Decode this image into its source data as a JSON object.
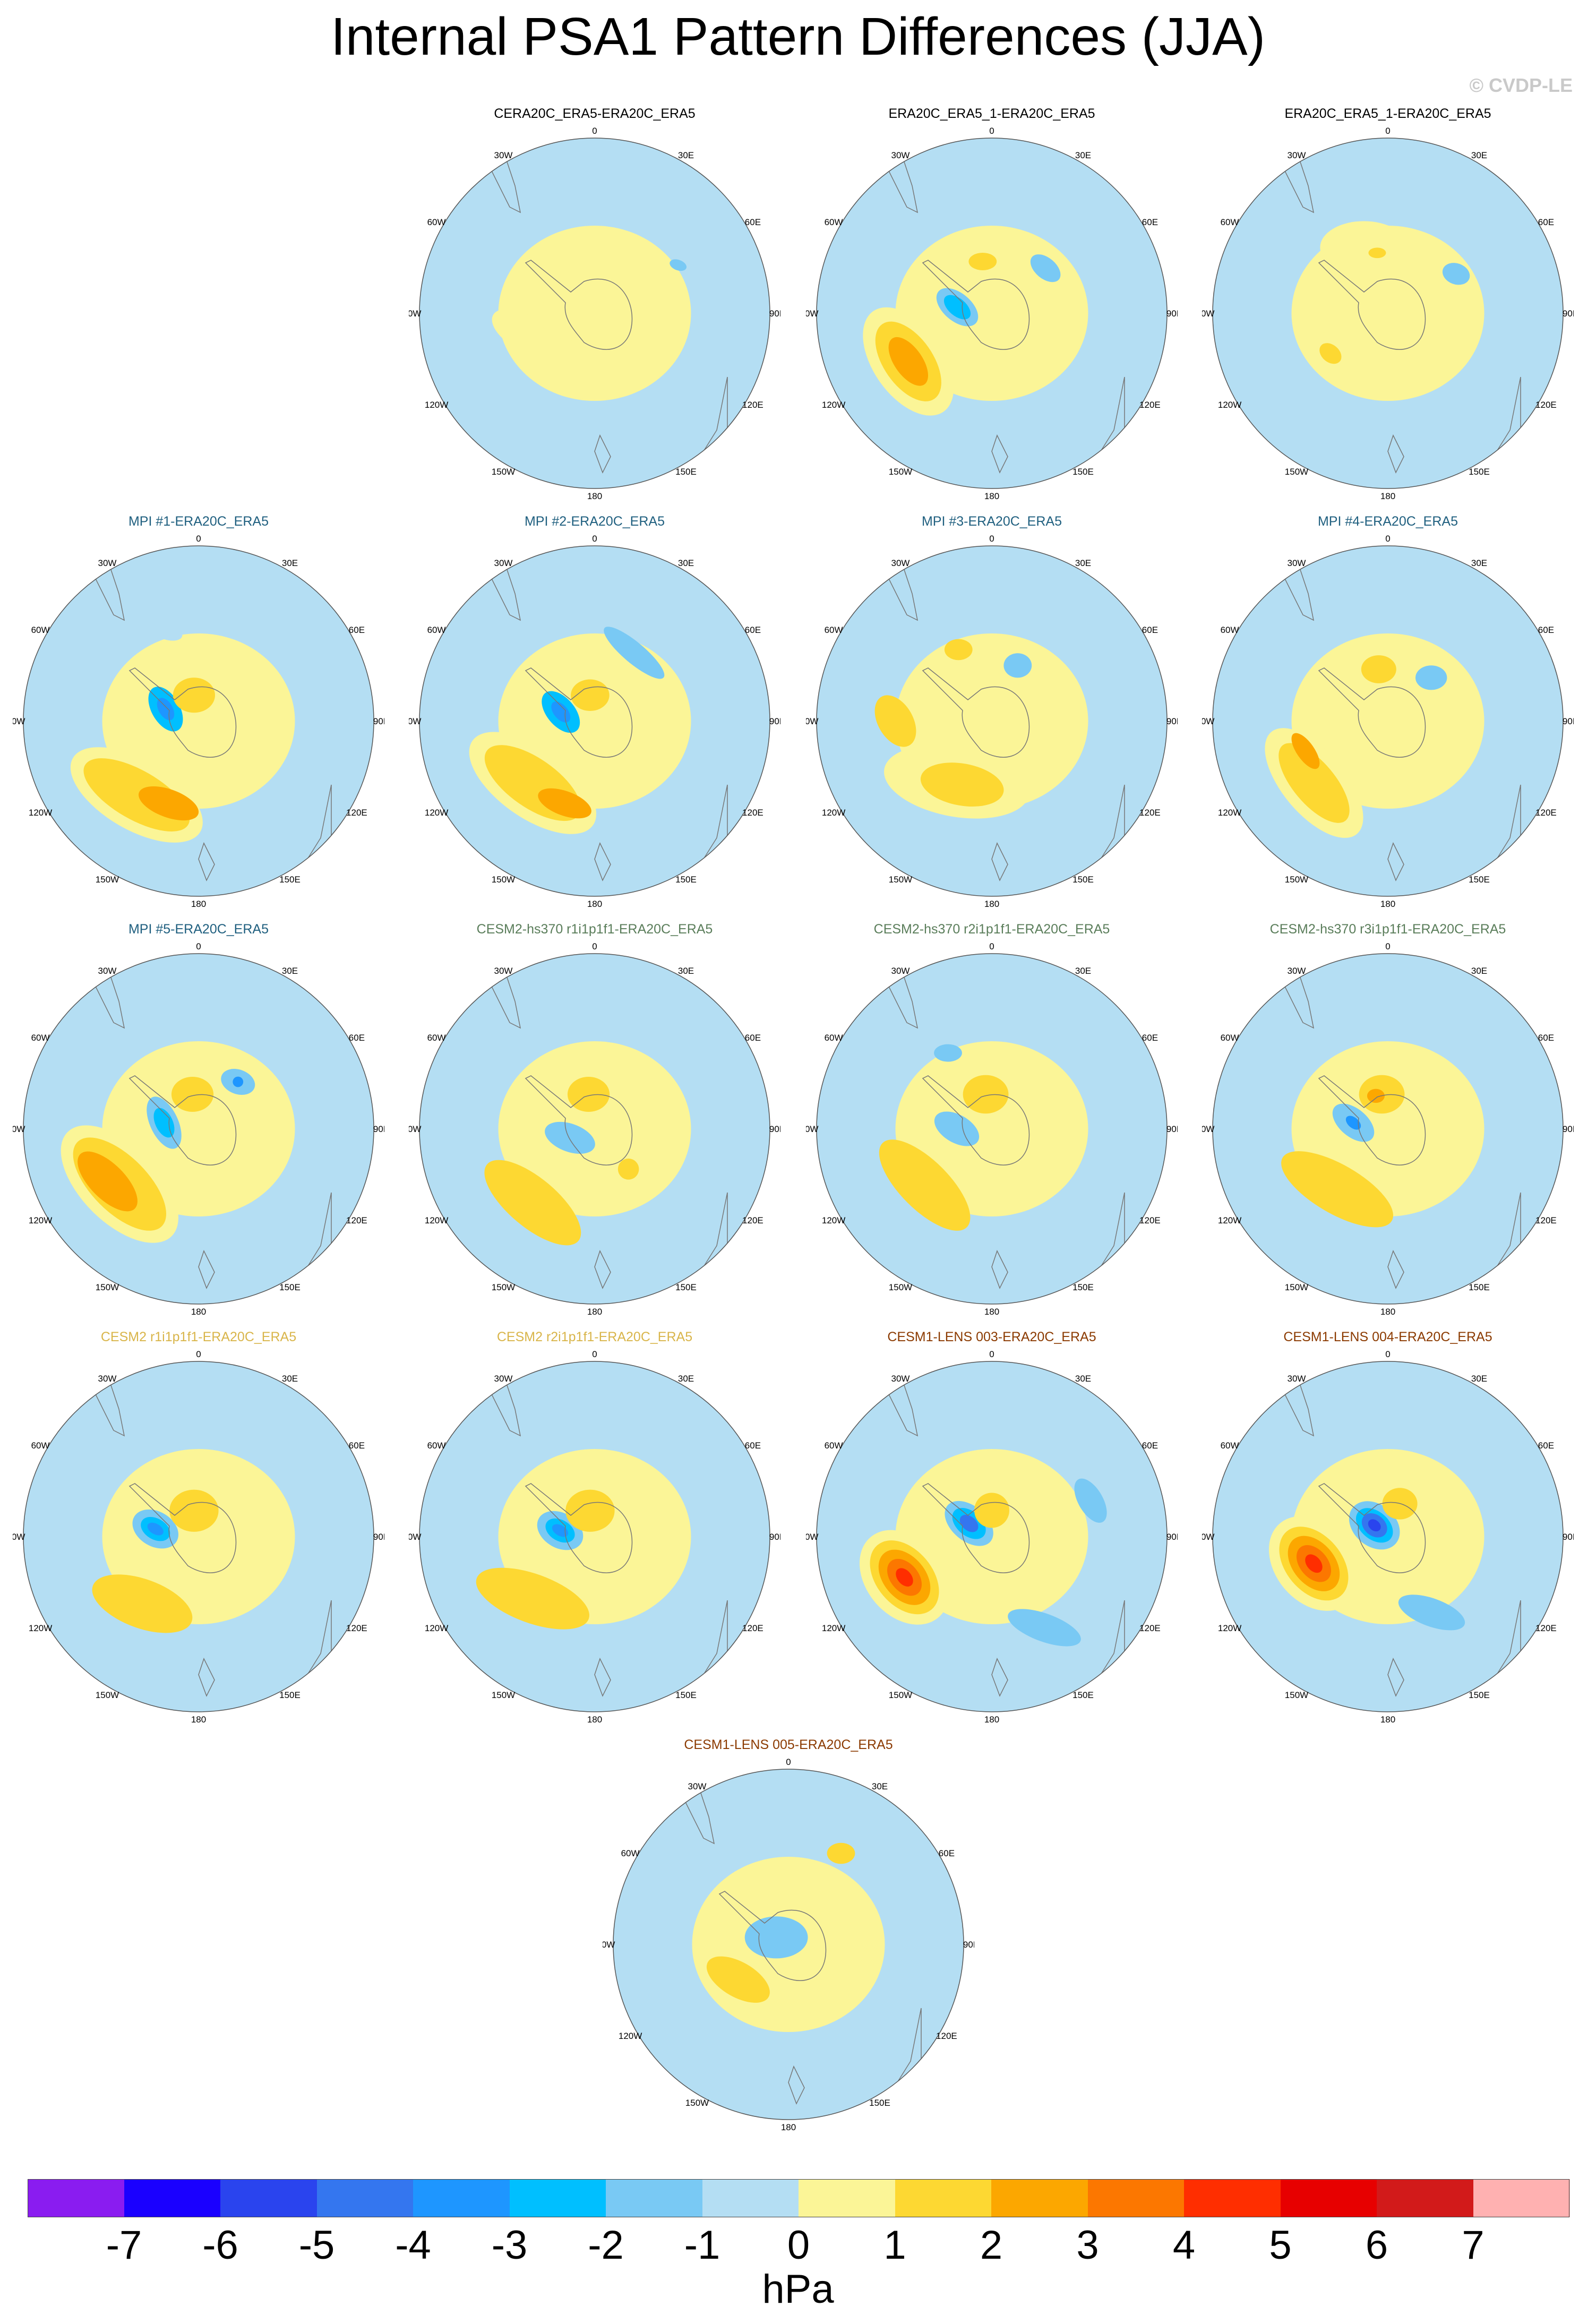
{
  "title": "Internal PSA1 Pattern Differences (JJA)",
  "credit": "© CVDP-LE",
  "colors": {
    "levels": [
      "#8a1cf0",
      "#1a00ff",
      "#2a44ee",
      "#3476ef",
      "#1e96ff",
      "#00bfff",
      "#79c9f4",
      "#b4def3",
      "#fbf597",
      "#fdd832",
      "#fca700",
      "#fc7700",
      "#ff2e00",
      "#e70000",
      "#d21a1a",
      "#ffb1b1"
    ]
  },
  "lon_labels": [
    "0",
    "30E",
    "60E",
    "90E",
    "120E",
    "150E",
    "180",
    "150W",
    "120W",
    "90W",
    "60W",
    "30W"
  ],
  "panels": [
    {
      "title": "CERA20C_ERA5-ERA20C_ERA5",
      "title_color": "#000000",
      "blobs": [
        {
          "lon": -105,
          "r": 0.42,
          "rx": 0.2,
          "ry": 0.1,
          "rot": 30,
          "level": 8
        },
        {
          "lon": -95,
          "r": 0.1,
          "rx": 0.22,
          "ry": 0.15,
          "rot": 0,
          "level": 8
        },
        {
          "lon": 60,
          "r": 0.55,
          "rx": 0.05,
          "ry": 0.03,
          "rot": 20,
          "level": 6
        }
      ]
    },
    {
      "title": "ERA20C_ERA5_1-ERA20C_ERA5",
      "title_color": "#000000",
      "blobs": [
        {
          "lon": -120,
          "r": 0.55,
          "rx": 0.35,
          "ry": 0.2,
          "rot": 55,
          "level": 8
        },
        {
          "lon": -120,
          "r": 0.55,
          "rx": 0.26,
          "ry": 0.14,
          "rot": 55,
          "level": 9
        },
        {
          "lon": -120,
          "r": 0.55,
          "rx": 0.16,
          "ry": 0.08,
          "rot": 55,
          "level": 10
        },
        {
          "lon": -80,
          "r": 0.2,
          "rx": 0.14,
          "ry": 0.08,
          "rot": 40,
          "level": 6
        },
        {
          "lon": -80,
          "r": 0.2,
          "rx": 0.09,
          "ry": 0.05,
          "rot": 40,
          "level": 5
        },
        {
          "lon": -30,
          "r": 0.25,
          "rx": 0.12,
          "ry": 0.08,
          "rot": 0,
          "level": 8
        },
        {
          "lon": -10,
          "r": 0.3,
          "rx": 0.08,
          "ry": 0.05,
          "rot": 0,
          "level": 9
        },
        {
          "lon": 50,
          "r": 0.4,
          "rx": 0.1,
          "ry": 0.06,
          "rot": 40,
          "level": 6
        }
      ]
    },
    {
      "title": "ERA20C_ERA5_1-ERA20C_ERA5",
      "title_color": "#000000",
      "blobs": [
        {
          "lon": -125,
          "r": 0.4,
          "rx": 0.14,
          "ry": 0.1,
          "rot": 40,
          "level": 8
        },
        {
          "lon": -125,
          "r": 0.4,
          "rx": 0.07,
          "ry": 0.05,
          "rot": 40,
          "level": 9
        },
        {
          "lon": -20,
          "r": 0.4,
          "rx": 0.25,
          "ry": 0.15,
          "rot": 0,
          "level": 8
        },
        {
          "lon": -10,
          "r": 0.35,
          "rx": 0.05,
          "ry": 0.03,
          "rot": 0,
          "level": 9
        },
        {
          "lon": 60,
          "r": 0.45,
          "rx": 0.08,
          "ry": 0.06,
          "rot": 20,
          "level": 6
        }
      ]
    },
    {
      "title": "MPI #1-ERA20C_ERA5",
      "title_color": "#1f5f7f",
      "blobs": [
        {
          "lon": -140,
          "r": 0.55,
          "rx": 0.42,
          "ry": 0.2,
          "rot": 30,
          "level": 8
        },
        {
          "lon": -140,
          "r": 0.55,
          "rx": 0.34,
          "ry": 0.14,
          "rot": 30,
          "level": 9
        },
        {
          "lon": -160,
          "r": 0.5,
          "rx": 0.18,
          "ry": 0.08,
          "rot": 20,
          "level": 10
        },
        {
          "lon": -70,
          "r": 0.2,
          "rx": 0.14,
          "ry": 0.08,
          "rot": 60,
          "level": 5
        },
        {
          "lon": -70,
          "r": 0.2,
          "rx": 0.07,
          "ry": 0.04,
          "rot": 60,
          "level": 4
        },
        {
          "lon": -10,
          "r": 0.15,
          "rx": 0.12,
          "ry": 0.1,
          "rot": 0,
          "level": 9
        },
        {
          "lon": -20,
          "r": 0.55,
          "rx": 0.1,
          "ry": 0.05,
          "rot": 20,
          "level": 7
        }
      ]
    },
    {
      "title": "MPI #2-ERA20C_ERA5",
      "title_color": "#1f5f7f",
      "blobs": [
        {
          "lon": -135,
          "r": 0.5,
          "rx": 0.42,
          "ry": 0.2,
          "rot": 35,
          "level": 8
        },
        {
          "lon": -135,
          "r": 0.5,
          "rx": 0.32,
          "ry": 0.14,
          "rot": 35,
          "level": 9
        },
        {
          "lon": -160,
          "r": 0.5,
          "rx": 0.16,
          "ry": 0.07,
          "rot": 20,
          "level": 10
        },
        {
          "lon": -75,
          "r": 0.2,
          "rx": 0.14,
          "ry": 0.08,
          "rot": 50,
          "level": 5
        },
        {
          "lon": -75,
          "r": 0.2,
          "rx": 0.07,
          "ry": 0.04,
          "rot": 50,
          "level": 4
        },
        {
          "lon": -10,
          "r": 0.15,
          "rx": 0.11,
          "ry": 0.09,
          "rot": 0,
          "level": 9
        },
        {
          "lon": 30,
          "r": 0.45,
          "rx": 0.22,
          "ry": 0.06,
          "rot": 40,
          "level": 6
        }
      ]
    },
    {
      "title": "MPI #3-ERA20C_ERA5",
      "title_color": "#1f5f7f",
      "blobs": [
        {
          "lon": -150,
          "r": 0.4,
          "rx": 0.42,
          "ry": 0.2,
          "rot": 10,
          "level": 8
        },
        {
          "lon": -155,
          "r": 0.4,
          "rx": 0.24,
          "ry": 0.12,
          "rot": 10,
          "level": 9
        },
        {
          "lon": -90,
          "r": 0.55,
          "rx": 0.16,
          "ry": 0.1,
          "rot": 60,
          "level": 9
        },
        {
          "lon": -25,
          "r": 0.45,
          "rx": 0.08,
          "ry": 0.06,
          "rot": 0,
          "level": 9
        },
        {
          "lon": 25,
          "r": 0.35,
          "rx": 0.08,
          "ry": 0.07,
          "rot": 0,
          "level": 6
        }
      ]
    },
    {
      "title": "MPI #4-ERA20C_ERA5",
      "title_color": "#1f5f7f",
      "blobs": [
        {
          "lon": -130,
          "r": 0.55,
          "rx": 0.38,
          "ry": 0.18,
          "rot": 50,
          "level": 8
        },
        {
          "lon": -130,
          "r": 0.55,
          "rx": 0.28,
          "ry": 0.12,
          "rot": 50,
          "level": 9
        },
        {
          "lon": -110,
          "r": 0.5,
          "rx": 0.12,
          "ry": 0.05,
          "rot": 55,
          "level": 10
        },
        {
          "lon": -10,
          "r": 0.3,
          "rx": 0.16,
          "ry": 0.12,
          "rot": 0,
          "level": 8
        },
        {
          "lon": -10,
          "r": 0.3,
          "rx": 0.1,
          "ry": 0.08,
          "rot": 0,
          "level": 9
        },
        {
          "lon": 45,
          "r": 0.35,
          "rx": 0.09,
          "ry": 0.07,
          "rot": 0,
          "level": 6
        }
      ]
    },
    {
      "title": "MPI #5-ERA20C_ERA5",
      "title_color": "#1f5f7f",
      "blobs": [
        {
          "lon": -125,
          "r": 0.55,
          "rx": 0.42,
          "ry": 0.22,
          "rot": 45,
          "level": 8
        },
        {
          "lon": -125,
          "r": 0.55,
          "rx": 0.34,
          "ry": 0.16,
          "rot": 45,
          "level": 9
        },
        {
          "lon": -120,
          "r": 0.6,
          "rx": 0.22,
          "ry": 0.1,
          "rot": 45,
          "level": 10
        },
        {
          "lon": -80,
          "r": 0.2,
          "rx": 0.16,
          "ry": 0.08,
          "rot": 65,
          "level": 6
        },
        {
          "lon": -80,
          "r": 0.2,
          "rx": 0.09,
          "ry": 0.05,
          "rot": 65,
          "level": 5
        },
        {
          "lon": -10,
          "r": 0.2,
          "rx": 0.12,
          "ry": 0.1,
          "rot": 0,
          "level": 9
        },
        {
          "lon": 40,
          "r": 0.35,
          "rx": 0.1,
          "ry": 0.07,
          "rot": 20,
          "level": 6
        },
        {
          "lon": 40,
          "r": 0.35,
          "rx": 0.03,
          "ry": 0.03,
          "rot": 0,
          "level": 4
        }
      ]
    },
    {
      "title": "CESM2-hs370 r1i1p1f1-ERA20C_ERA5",
      "title_color": "#5a7d5a",
      "blobs": [
        {
          "lon": -140,
          "r": 0.55,
          "rx": 0.34,
          "ry": 0.14,
          "rot": 40,
          "level": 9
        },
        {
          "lon": -10,
          "r": 0.2,
          "rx": 0.12,
          "ry": 0.1,
          "rot": 0,
          "level": 9
        },
        {
          "lon": -110,
          "r": 0.15,
          "rx": 0.15,
          "ry": 0.08,
          "rot": 20,
          "level": 6
        },
        {
          "lon": 140,
          "r": 0.3,
          "rx": 0.06,
          "ry": 0.06,
          "rot": 0,
          "level": 9
        }
      ]
    },
    {
      "title": "CESM2-hs370 r2i1p1f1-ERA20C_ERA5",
      "title_color": "#5a7d5a",
      "blobs": [
        {
          "lon": -130,
          "r": 0.5,
          "rx": 0.34,
          "ry": 0.14,
          "rot": 45,
          "level": 9
        },
        {
          "lon": -90,
          "r": 0.2,
          "rx": 0.14,
          "ry": 0.08,
          "rot": 30,
          "level": 6
        },
        {
          "lon": -10,
          "r": 0.2,
          "rx": 0.13,
          "ry": 0.11,
          "rot": 0,
          "level": 9
        },
        {
          "lon": -30,
          "r": 0.5,
          "rx": 0.08,
          "ry": 0.05,
          "rot": 0,
          "level": 6
        }
      ]
    },
    {
      "title": "CESM2-hs370 r3i1p1f1-ERA20C_ERA5",
      "title_color": "#5a7d5a",
      "blobs": [
        {
          "lon": -140,
          "r": 0.45,
          "rx": 0.36,
          "ry": 0.14,
          "rot": 30,
          "level": 9
        },
        {
          "lon": -80,
          "r": 0.2,
          "rx": 0.14,
          "ry": 0.08,
          "rot": 40,
          "level": 6
        },
        {
          "lon": -80,
          "r": 0.2,
          "rx": 0.05,
          "ry": 0.03,
          "rot": 40,
          "level": 4
        },
        {
          "lon": -10,
          "r": 0.2,
          "rx": 0.13,
          "ry": 0.11,
          "rot": 0,
          "level": 9
        },
        {
          "lon": -20,
          "r": 0.2,
          "rx": 0.05,
          "ry": 0.04,
          "rot": 0,
          "level": 10
        }
      ]
    },
    {
      "title": "CESM2 r1i1p1f1-ERA20C_ERA5",
      "title_color": "#d9b54a",
      "blobs": [
        {
          "lon": -140,
          "r": 0.5,
          "rx": 0.3,
          "ry": 0.14,
          "rot": 20,
          "level": 9
        },
        {
          "lon": -80,
          "r": 0.25,
          "rx": 0.14,
          "ry": 0.1,
          "rot": 30,
          "level": 6
        },
        {
          "lon": -80,
          "r": 0.25,
          "rx": 0.09,
          "ry": 0.06,
          "rot": 30,
          "level": 5
        },
        {
          "lon": -80,
          "r": 0.25,
          "rx": 0.05,
          "ry": 0.03,
          "rot": 30,
          "level": 4
        },
        {
          "lon": -10,
          "r": 0.15,
          "rx": 0.14,
          "ry": 0.12,
          "rot": 0,
          "level": 9
        }
      ]
    },
    {
      "title": "CESM2 r2i1p1f1-ERA20C_ERA5",
      "title_color": "#d9b54a",
      "blobs": [
        {
          "lon": -135,
          "r": 0.5,
          "rx": 0.34,
          "ry": 0.14,
          "rot": 20,
          "level": 9
        },
        {
          "lon": -80,
          "r": 0.2,
          "rx": 0.14,
          "ry": 0.1,
          "rot": 30,
          "level": 6
        },
        {
          "lon": -80,
          "r": 0.2,
          "rx": 0.09,
          "ry": 0.06,
          "rot": 30,
          "level": 5
        },
        {
          "lon": -80,
          "r": 0.2,
          "rx": 0.05,
          "ry": 0.03,
          "rot": 30,
          "level": 4
        },
        {
          "lon": -10,
          "r": 0.15,
          "rx": 0.14,
          "ry": 0.12,
          "rot": 0,
          "level": 9
        }
      ]
    },
    {
      "title": "CESM1-LENS 003-ERA20C_ERA5",
      "title_color": "#8b3a00",
      "blobs": [
        {
          "lon": -115,
          "r": 0.55,
          "rx": 0.3,
          "ry": 0.22,
          "rot": 50,
          "level": 8
        },
        {
          "lon": -115,
          "r": 0.55,
          "rx": 0.24,
          "ry": 0.16,
          "rot": 50,
          "level": 9
        },
        {
          "lon": -115,
          "r": 0.55,
          "rx": 0.18,
          "ry": 0.12,
          "rot": 50,
          "level": 10
        },
        {
          "lon": -115,
          "r": 0.55,
          "rx": 0.12,
          "ry": 0.08,
          "rot": 50,
          "level": 11
        },
        {
          "lon": -115,
          "r": 0.55,
          "rx": 0.06,
          "ry": 0.04,
          "rot": 50,
          "level": 12
        },
        {
          "lon": -60,
          "r": 0.15,
          "rx": 0.16,
          "ry": 0.1,
          "rot": 40,
          "level": 6
        },
        {
          "lon": -60,
          "r": 0.15,
          "rx": 0.11,
          "ry": 0.07,
          "rot": 40,
          "level": 5
        },
        {
          "lon": -60,
          "r": 0.15,
          "rx": 0.06,
          "ry": 0.04,
          "rot": 40,
          "level": 3
        },
        {
          "lon": 0,
          "r": 0.15,
          "rx": 0.1,
          "ry": 0.1,
          "rot": 0,
          "level": 9
        },
        {
          "lon": 150,
          "r": 0.6,
          "rx": 0.22,
          "ry": 0.08,
          "rot": 20,
          "level": 6
        },
        {
          "lon": 70,
          "r": 0.6,
          "rx": 0.14,
          "ry": 0.07,
          "rot": 60,
          "level": 6
        }
      ]
    },
    {
      "title": "CESM1-LENS 004-ERA20C_ERA5",
      "title_color": "#8b3a00",
      "blobs": [
        {
          "lon": -110,
          "r": 0.45,
          "rx": 0.3,
          "ry": 0.22,
          "rot": 50,
          "level": 8
        },
        {
          "lon": -110,
          "r": 0.45,
          "rx": 0.24,
          "ry": 0.16,
          "rot": 50,
          "level": 9
        },
        {
          "lon": -110,
          "r": 0.45,
          "rx": 0.18,
          "ry": 0.12,
          "rot": 50,
          "level": 10
        },
        {
          "lon": -110,
          "r": 0.45,
          "rx": 0.12,
          "ry": 0.08,
          "rot": 50,
          "level": 11
        },
        {
          "lon": -110,
          "r": 0.45,
          "rx": 0.06,
          "ry": 0.04,
          "rot": 50,
          "level": 12
        },
        {
          "lon": -50,
          "r": 0.1,
          "rx": 0.16,
          "ry": 0.12,
          "rot": 40,
          "level": 6
        },
        {
          "lon": -50,
          "r": 0.1,
          "rx": 0.12,
          "ry": 0.08,
          "rot": 40,
          "level": 5
        },
        {
          "lon": -50,
          "r": 0.1,
          "rx": 0.08,
          "ry": 0.06,
          "rot": 40,
          "level": 3
        },
        {
          "lon": -50,
          "r": 0.1,
          "rx": 0.04,
          "ry": 0.03,
          "rot": 40,
          "level": 2
        },
        {
          "lon": 20,
          "r": 0.2,
          "rx": 0.1,
          "ry": 0.09,
          "rot": 0,
          "level": 9
        },
        {
          "lon": 150,
          "r": 0.5,
          "rx": 0.2,
          "ry": 0.08,
          "rot": 20,
          "level": 6
        }
      ]
    },
    {
      "title": "CESM1-LENS 005-ERA20C_ERA5",
      "title_color": "#8b3a00",
      "blobs": [
        {
          "lon": -125,
          "r": 0.35,
          "rx": 0.2,
          "ry": 0.1,
          "rot": 30,
          "level": 9
        },
        {
          "lon": -60,
          "r": 0.08,
          "rx": 0.18,
          "ry": 0.12,
          "rot": 0,
          "level": 6
        },
        {
          "lon": 30,
          "r": 0.6,
          "rx": 0.08,
          "ry": 0.06,
          "rot": 0,
          "level": 9
        }
      ]
    }
  ],
  "colorbar": {
    "labels": [
      "-7",
      "-6",
      "-5",
      "-4",
      "-3",
      "-2",
      "-1",
      "0",
      "1",
      "2",
      "3",
      "4",
      "5",
      "6",
      "7"
    ],
    "units": "hPa"
  }
}
